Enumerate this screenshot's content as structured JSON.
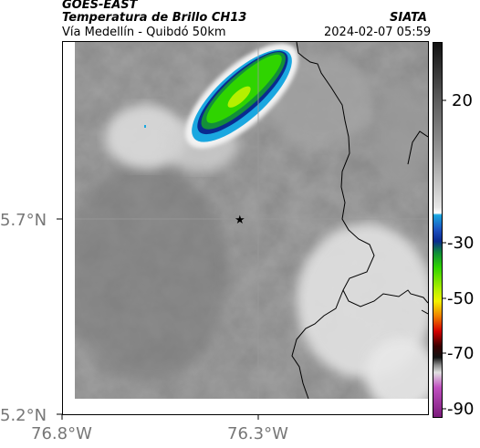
{
  "header": {
    "satellite": "GOES-EAST",
    "product": "Temperatura de Brillo CH13",
    "region": "Vía Medellín - Quibdó 50km",
    "source": "SIATA",
    "datetime": "2024-02-07 05:59"
  },
  "map": {
    "x_ticks": [
      "76.8°W",
      "76.3°W"
    ],
    "y_ticks": [
      "5.7°N",
      "5.2°N"
    ],
    "marker": "star-marker"
  },
  "colorbar": {
    "labels": [
      "20",
      "-30",
      "-50",
      "-70",
      "-90"
    ],
    "palette": {
      "warm_gray": "#bfbfbf",
      "cyan": "#1aa7e0",
      "green": "#2fd400",
      "yellow": "#f2f200",
      "red": "#d40000",
      "black": "#111111",
      "magenta": "#c050c0"
    }
  }
}
